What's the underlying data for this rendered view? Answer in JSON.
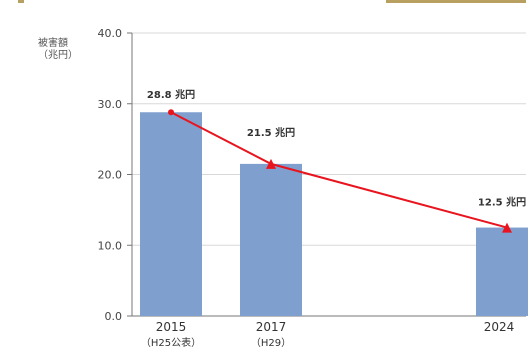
{
  "chart_data": {
    "type": "bar",
    "ylabel": [
      "被害額",
      "（兆円）"
    ],
    "ylim": [
      0,
      40
    ],
    "yticks": [
      0,
      10,
      20,
      30,
      40
    ],
    "ytick_labels": [
      "0.0",
      "10.0",
      "20.0",
      "30.0",
      "40.0"
    ],
    "categories": [
      {
        "year": "2015",
        "sub": "（H25公表）"
      },
      {
        "year": "2017",
        "sub": "（H29）"
      },
      {
        "year": "2024",
        "sub": ""
      }
    ],
    "values": [
      28.8,
      21.5,
      12.5
    ],
    "data_labels": [
      "28.8 兆円",
      "21.5 兆円",
      "12.5 兆円"
    ],
    "trend_line": true,
    "colors": {
      "bar": "#7f9fcf",
      "trend": "#e8141e",
      "axis": "#777777",
      "grid": "#d8d8d8",
      "accent": "#b8a060"
    }
  }
}
